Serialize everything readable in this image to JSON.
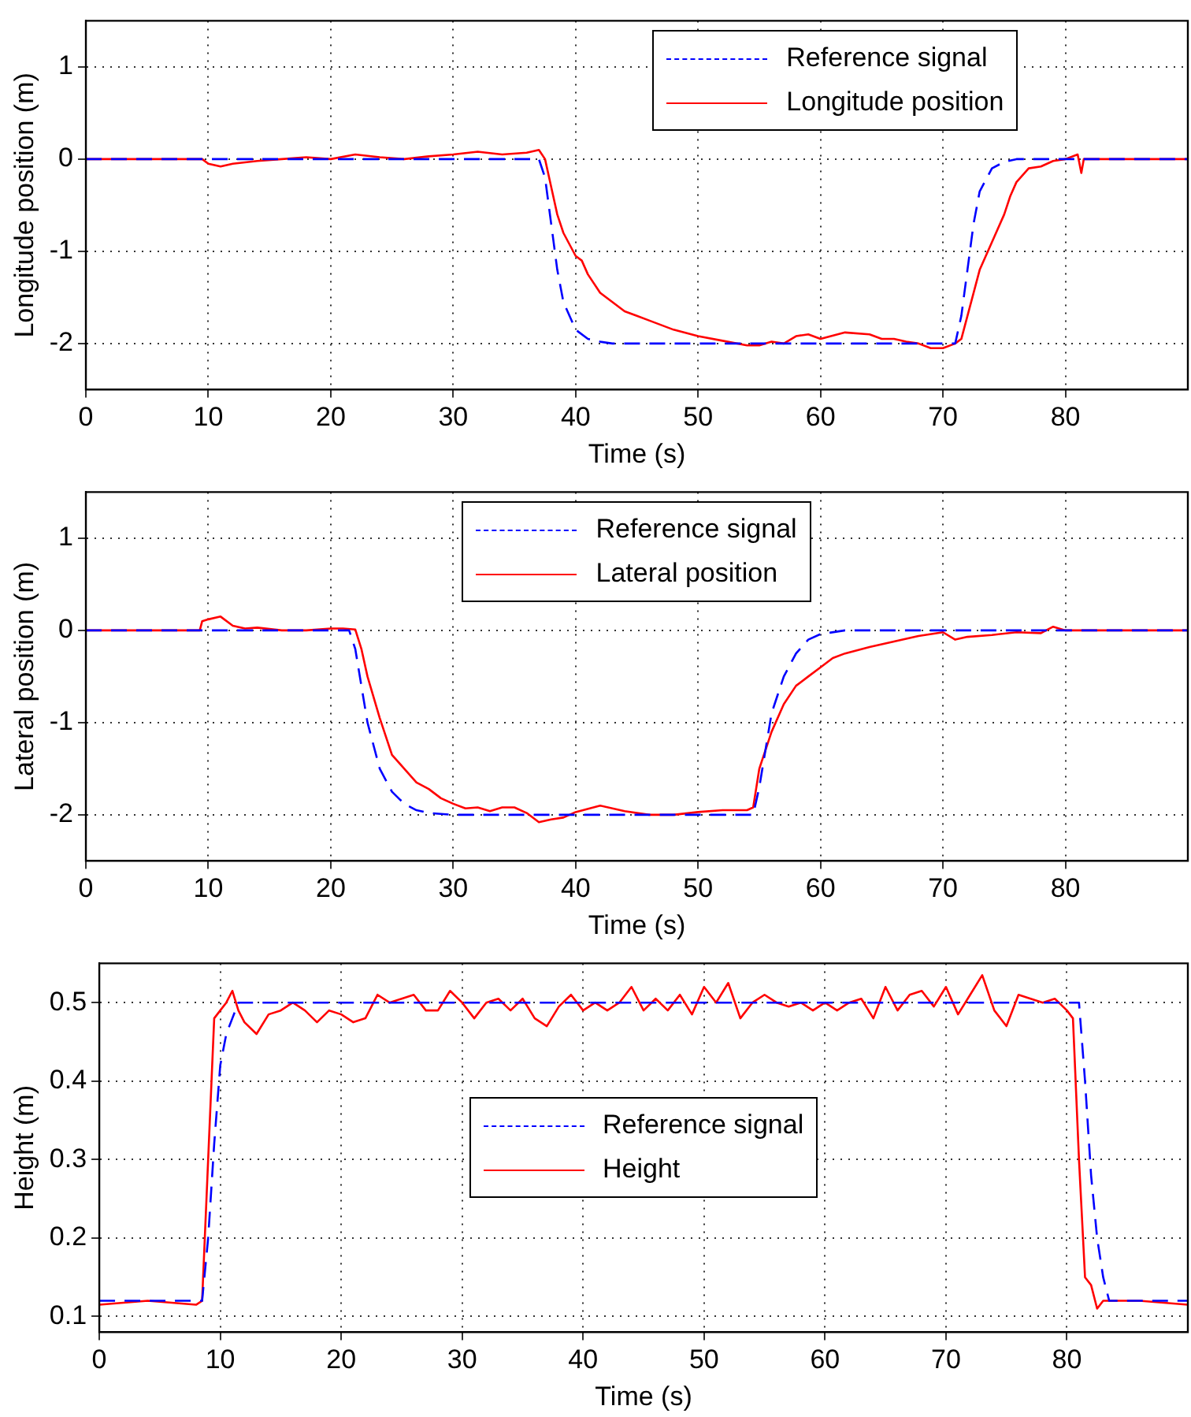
{
  "chart_data": [
    {
      "type": "line",
      "xlabel": "Time (s)",
      "ylabel": "Longitude position (m)",
      "xlim": [
        0,
        90
      ],
      "ylim": [
        -2.5,
        1.5
      ],
      "xticks": [
        0,
        10,
        20,
        30,
        40,
        50,
        60,
        70,
        80
      ],
      "yticks": [
        -2,
        -1,
        0,
        1
      ],
      "grid": true,
      "legend": "top right",
      "marker": "none",
      "series": [
        {
          "name": "Reference signal",
          "color": "#0000ff",
          "line_style": "dashed",
          "x": [
            0,
            37,
            37.5,
            38,
            38.5,
            39,
            40,
            41,
            42,
            43,
            45,
            50,
            71,
            71.5,
            72,
            72.5,
            73,
            74,
            75,
            76,
            90
          ],
          "values": [
            0,
            0,
            -0.2,
            -0.7,
            -1.2,
            -1.55,
            -1.85,
            -1.95,
            -1.98,
            -2,
            -2,
            -2,
            -2,
            -1.7,
            -1.2,
            -0.7,
            -0.35,
            -0.1,
            -0.03,
            0,
            0
          ]
        },
        {
          "name": "Longitude position",
          "color": "#ff0000",
          "line_style": "solid",
          "x": [
            0,
            9.5,
            10,
            11,
            12,
            14,
            16,
            18,
            20,
            22,
            24,
            26,
            28,
            30,
            32,
            34,
            36,
            37,
            37.5,
            38,
            38.5,
            39,
            40,
            40.5,
            41,
            42,
            43,
            44,
            45,
            46,
            48,
            50,
            52,
            54,
            55,
            56,
            57,
            58,
            59,
            60,
            62,
            64,
            65,
            66,
            67,
            68,
            69,
            70,
            71,
            71.5,
            72,
            73,
            74,
            75,
            75.5,
            76,
            77,
            78,
            79,
            80,
            81,
            81.3,
            81.5,
            82,
            90
          ],
          "values": [
            0,
            0,
            -0.05,
            -0.08,
            -0.05,
            -0.02,
            0,
            0.02,
            0,
            0.05,
            0.02,
            0,
            0.03,
            0.05,
            0.08,
            0.05,
            0.07,
            0.1,
            0,
            -0.3,
            -0.6,
            -0.8,
            -1.05,
            -1.1,
            -1.25,
            -1.45,
            -1.55,
            -1.65,
            -1.7,
            -1.75,
            -1.85,
            -1.92,
            -1.97,
            -2.02,
            -2.02,
            -1.98,
            -2,
            -1.92,
            -1.9,
            -1.95,
            -1.88,
            -1.9,
            -1.95,
            -1.95,
            -1.98,
            -2,
            -2.05,
            -2.05,
            -2,
            -1.95,
            -1.7,
            -1.2,
            -0.9,
            -0.6,
            -0.4,
            -0.25,
            -0.1,
            -0.08,
            -0.02,
            0,
            0.05,
            -0.15,
            0,
            0,
            0
          ]
        }
      ]
    },
    {
      "type": "line",
      "xlabel": "Time (s)",
      "ylabel": "Lateral position (m)",
      "xlim": [
        0,
        90
      ],
      "ylim": [
        -2.5,
        1.5
      ],
      "xticks": [
        0,
        10,
        20,
        30,
        40,
        50,
        60,
        70,
        80
      ],
      "yticks": [
        -2,
        -1,
        0,
        1
      ],
      "grid": true,
      "legend": "top",
      "marker": "none",
      "series": [
        {
          "name": "Reference signal",
          "color": "#0000ff",
          "line_style": "dashed",
          "x": [
            0,
            21.5,
            22,
            22.5,
            23,
            24,
            25,
            26,
            27,
            28,
            30,
            54.5,
            55,
            55.5,
            56,
            57,
            58,
            59,
            60,
            62,
            90
          ],
          "values": [
            0,
            0,
            -0.2,
            -0.6,
            -1.0,
            -1.5,
            -1.75,
            -1.88,
            -1.95,
            -1.98,
            -2,
            -2,
            -1.7,
            -1.3,
            -0.9,
            -0.5,
            -0.25,
            -0.1,
            -0.04,
            0,
            0
          ]
        },
        {
          "name": "Lateral position",
          "color": "#ff0000",
          "line_style": "solid",
          "x": [
            0,
            9.3,
            9.5,
            10,
            11,
            12,
            13,
            14,
            16,
            18,
            20,
            21,
            22,
            22.5,
            23,
            24,
            25,
            26,
            27,
            28,
            29,
            30,
            31,
            32,
            33,
            34,
            35,
            36,
            37,
            38,
            39,
            40,
            42,
            44,
            46,
            48,
            50,
            52,
            54,
            54.5,
            55,
            56,
            57,
            58,
            59,
            60,
            61,
            62,
            64,
            66,
            68,
            70,
            71,
            72,
            74,
            76,
            78,
            79,
            80,
            81,
            90
          ],
          "values": [
            0,
            0,
            0.1,
            0.12,
            0.15,
            0.05,
            0.02,
            0.03,
            0,
            0,
            0.02,
            0.02,
            0.01,
            -0.2,
            -0.5,
            -0.95,
            -1.35,
            -1.5,
            -1.65,
            -1.72,
            -1.82,
            -1.88,
            -1.93,
            -1.92,
            -1.96,
            -1.92,
            -1.92,
            -1.98,
            -2.08,
            -2.05,
            -2.03,
            -1.97,
            -1.9,
            -1.96,
            -2.0,
            -2.0,
            -1.97,
            -1.95,
            -1.95,
            -1.92,
            -1.5,
            -1.1,
            -0.8,
            -0.6,
            -0.5,
            -0.4,
            -0.3,
            -0.25,
            -0.18,
            -0.12,
            -0.06,
            -0.02,
            -0.1,
            -0.07,
            -0.05,
            -0.02,
            -0.03,
            0.04,
            0,
            0,
            0
          ]
        }
      ]
    },
    {
      "type": "line",
      "xlabel": "Time (s)",
      "ylabel": "Height (m)",
      "xlim": [
        0,
        90
      ],
      "ylim": [
        0.08,
        0.55
      ],
      "xticks": [
        0,
        10,
        20,
        30,
        40,
        50,
        60,
        70,
        80
      ],
      "yticks": [
        0.1,
        0.2,
        0.3,
        0.4,
        0.5
      ],
      "grid": true,
      "legend": "center",
      "marker": "none",
      "series": [
        {
          "name": "Reference signal",
          "color": "#0000ff",
          "line_style": "dashed",
          "x": [
            0,
            8.5,
            9,
            9.5,
            10,
            10.5,
            11,
            11.5,
            81,
            81.5,
            82,
            82.5,
            83,
            83.5,
            90
          ],
          "values": [
            0.12,
            0.12,
            0.2,
            0.32,
            0.42,
            0.46,
            0.48,
            0.5,
            0.5,
            0.4,
            0.28,
            0.2,
            0.15,
            0.12,
            0.12
          ]
        },
        {
          "name": "Height",
          "color": "#ff0000",
          "line_style": "solid",
          "x": [
            0,
            4,
            8,
            8.5,
            9,
            9.5,
            10,
            10.5,
            11,
            11.5,
            12,
            13,
            14,
            15,
            16,
            17,
            18,
            19,
            20,
            21,
            22,
            23,
            24,
            25,
            26,
            27,
            28,
            29,
            30,
            31,
            32,
            33,
            34,
            35,
            36,
            37,
            38,
            39,
            40,
            41,
            42,
            43,
            44,
            45,
            46,
            47,
            48,
            49,
            50,
            51,
            52,
            53,
            54,
            55,
            56,
            57,
            58,
            59,
            60,
            61,
            62,
            63,
            64,
            65,
            66,
            67,
            68,
            69,
            70,
            71,
            72,
            73,
            74,
            75,
            76,
            77,
            78,
            79,
            80,
            80.5,
            81,
            81.5,
            82,
            82.5,
            83,
            86,
            90
          ],
          "values": [
            0.115,
            0.12,
            0.115,
            0.12,
            0.3,
            0.48,
            0.49,
            0.5,
            0.515,
            0.49,
            0.475,
            0.46,
            0.485,
            0.49,
            0.5,
            0.49,
            0.475,
            0.49,
            0.485,
            0.475,
            0.48,
            0.51,
            0.5,
            0.505,
            0.51,
            0.49,
            0.49,
            0.515,
            0.5,
            0.48,
            0.5,
            0.505,
            0.49,
            0.505,
            0.48,
            0.47,
            0.495,
            0.51,
            0.49,
            0.5,
            0.49,
            0.5,
            0.52,
            0.49,
            0.505,
            0.49,
            0.51,
            0.485,
            0.52,
            0.5,
            0.525,
            0.48,
            0.5,
            0.51,
            0.5,
            0.495,
            0.5,
            0.49,
            0.5,
            0.49,
            0.5,
            0.505,
            0.48,
            0.52,
            0.49,
            0.51,
            0.515,
            0.495,
            0.52,
            0.485,
            0.51,
            0.535,
            0.49,
            0.47,
            0.51,
            0.505,
            0.5,
            0.505,
            0.49,
            0.48,
            0.3,
            0.15,
            0.14,
            0.11,
            0.12,
            0.12,
            0.115
          ]
        }
      ]
    }
  ]
}
